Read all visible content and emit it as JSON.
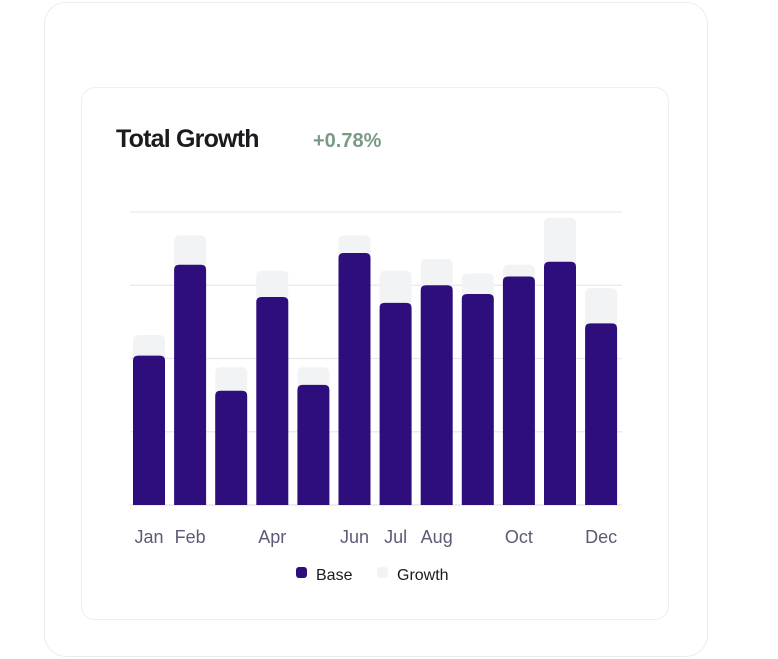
{
  "card": {
    "title": "Total Growth",
    "delta": "+0.78%"
  },
  "chart_data": {
    "type": "bar",
    "stacked": true,
    "tick_labels": [
      "Jan",
      "Feb",
      "",
      "Apr",
      "",
      "Jun",
      "Jul",
      "Aug",
      "",
      "Oct",
      "",
      "Dec"
    ],
    "series": [
      {
        "name": "Base",
        "color": "#2e0e7c",
        "values": [
          51,
          82,
          39,
          71,
          41,
          86,
          69,
          75,
          72,
          78,
          83,
          62
        ]
      },
      {
        "name": "Growth",
        "color": "#f2f3f5",
        "values": [
          7,
          10,
          8,
          9,
          6,
          6,
          11,
          9,
          7,
          4,
          15,
          12
        ]
      }
    ],
    "ylim": [
      0,
      100
    ],
    "grid": true,
    "y_axis_labels_shown": false,
    "legend": "bottom"
  }
}
